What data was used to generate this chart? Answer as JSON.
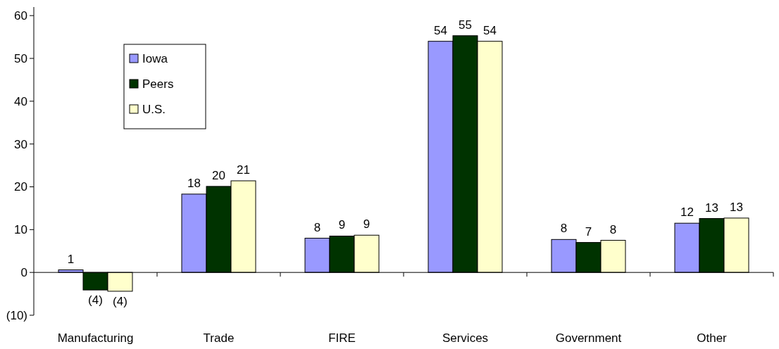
{
  "chart_data": {
    "type": "bar",
    "categories": [
      "Manufacturing",
      "Trade",
      "FIRE",
      "Services",
      "Government",
      "Other"
    ],
    "series": [
      {
        "name": "Iowa",
        "color": "#9999ff",
        "values": [
          0.6,
          18.3,
          8.0,
          54.0,
          7.7,
          11.5
        ],
        "value_labels": [
          "1",
          "18",
          "8",
          "54",
          "8",
          "12"
        ]
      },
      {
        "name": "Peers",
        "color": "#003300",
        "values": [
          -4.1,
          20.1,
          8.5,
          55.3,
          7.0,
          12.6
        ],
        "value_labels": [
          "(4)",
          "20",
          "9",
          "55",
          "7",
          "13"
        ]
      },
      {
        "name": "U.S.",
        "color": "#ffffcc",
        "values": [
          -4.4,
          21.4,
          8.7,
          54.0,
          7.5,
          12.7
        ],
        "value_labels": [
          "(4)",
          "21",
          "9",
          "54",
          "8",
          "13"
        ]
      }
    ],
    "ylim": [
      -10,
      62
    ],
    "yticks": [
      {
        "value": -10,
        "label": "(10)"
      },
      0,
      10,
      20,
      30,
      40,
      50,
      60
    ],
    "legend": "top left"
  }
}
